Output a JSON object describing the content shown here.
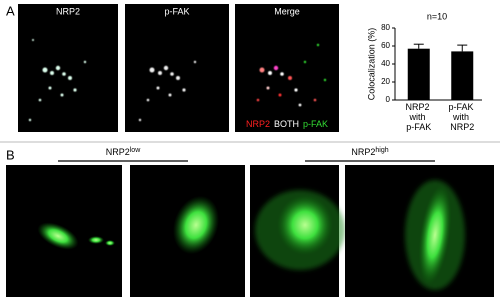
{
  "panel_a": {
    "label": "A",
    "images": [
      "NRP2",
      "p-FAK",
      "Merge"
    ],
    "merge_legend": [
      {
        "text": "NRP2",
        "color": "#ff2020"
      },
      {
        "text": "BOTH",
        "color": "#ffffff"
      },
      {
        "text": "p-FAK",
        "color": "#33dd33"
      }
    ]
  },
  "panel_b": {
    "label": "B",
    "groups": [
      {
        "text": "NRP2",
        "sup": "low"
      },
      {
        "text": "NRP2",
        "sup": "high"
      }
    ]
  },
  "chart_data": {
    "type": "bar",
    "y_label": "Colocalization (%)",
    "annotation": "n=10",
    "categories": [
      "NRP2 with p-FAK",
      "p-FAK with NRP2"
    ],
    "values": [
      57,
      54
    ],
    "errors": [
      5,
      7
    ],
    "color": "#000000",
    "ylim": [
      0,
      80
    ],
    "yticks": [
      0,
      20,
      40,
      60,
      80
    ]
  }
}
